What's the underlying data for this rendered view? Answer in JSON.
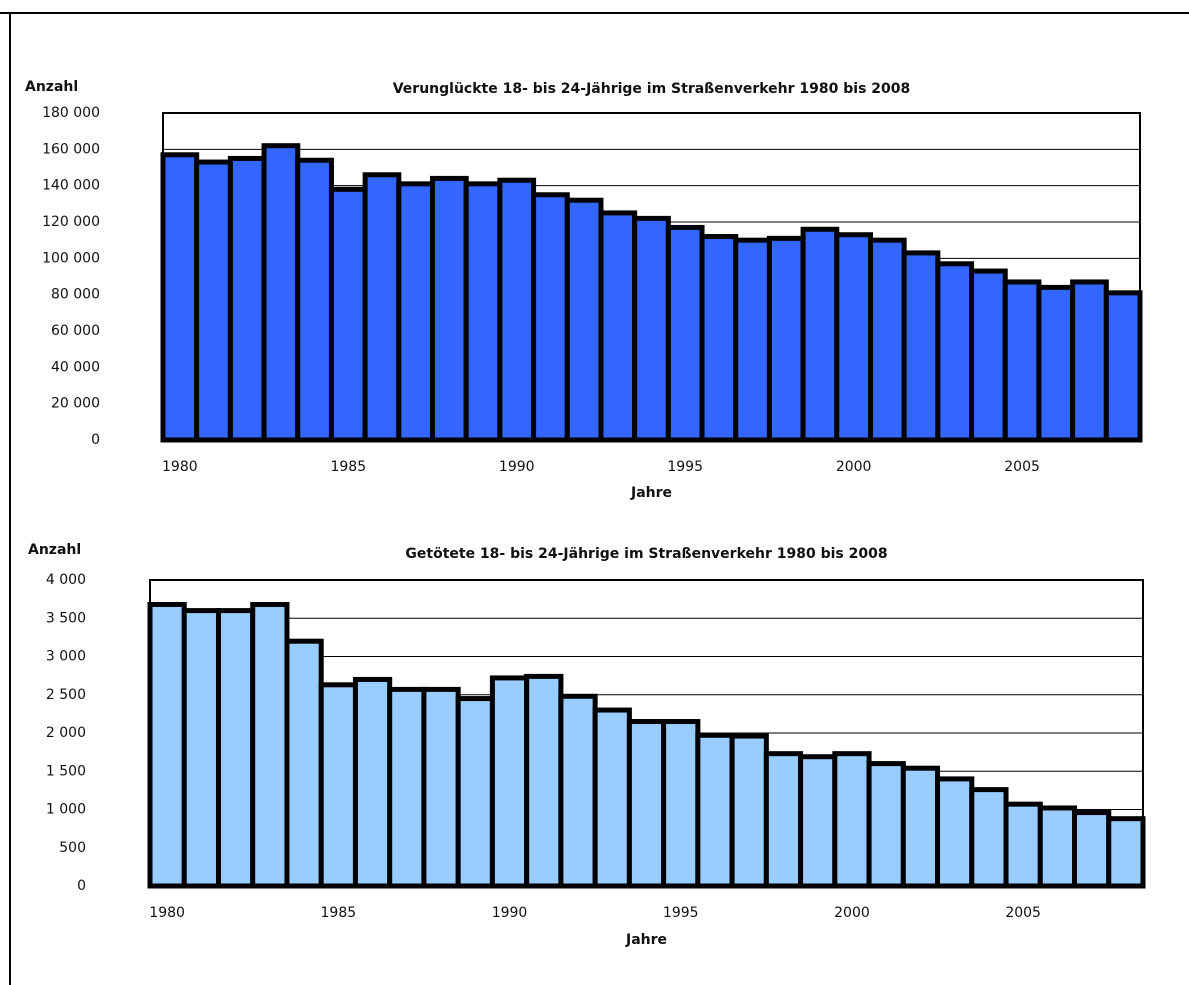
{
  "chart_data": [
    {
      "type": "bar",
      "title": "Verunglückte  18- bis 24-Jährige im Straßenverkehr 1980 bis 2008",
      "y_label": "Anzahl",
      "x_label": "Jahre",
      "categories": [
        1980,
        null,
        null,
        null,
        null,
        1985,
        null,
        null,
        null,
        null,
        1990,
        null,
        null,
        null,
        null,
        1995,
        null,
        null,
        null,
        null,
        2000,
        null,
        null,
        null,
        null,
        2005,
        null,
        null,
        null
      ],
      "values": [
        157000,
        153000,
        155000,
        162000,
        154000,
        138000,
        146000,
        141000,
        144000,
        141000,
        143000,
        135000,
        132000,
        125000,
        122000,
        117000,
        112000,
        110000,
        111000,
        116000,
        113000,
        110000,
        103000,
        97000,
        93000,
        87000,
        84000,
        87000,
        81000
      ],
      "color": "#3366ff",
      "ylim": [
        0,
        180000
      ],
      "yticks": [
        0,
        {
          "value": 20000,
          "label": "20 000"
        },
        {
          "value": 40000,
          "label": "40 000"
        },
        {
          "value": 60000,
          "label": "60 000"
        },
        {
          "value": 80000,
          "label": "80 000"
        },
        {
          "value": 100000,
          "label": "100 000"
        },
        {
          "value": 120000,
          "label": "120 000"
        },
        {
          "value": 140000,
          "label": "140 000"
        },
        {
          "value": 160000,
          "label": "160 000"
        },
        {
          "value": 180000,
          "label": "180 000"
        }
      ],
      "grid": true
    },
    {
      "type": "bar",
      "title": "Getötete 18- bis 24-Jährige im Straßenverkehr 1980 bis 2008",
      "y_label": "Anzahl",
      "x_label": "Jahre",
      "categories": [
        1980,
        null,
        null,
        null,
        null,
        1985,
        null,
        null,
        null,
        null,
        1990,
        null,
        null,
        null,
        null,
        1995,
        null,
        null,
        null,
        null,
        2000,
        null,
        null,
        null,
        null,
        2005,
        null,
        null,
        null
      ],
      "values": [
        3680,
        3600,
        3600,
        3680,
        3200,
        2630,
        2700,
        2570,
        2570,
        2450,
        2720,
        2740,
        2480,
        2300,
        2150,
        2150,
        1970,
        1960,
        1730,
        1690,
        1730,
        1600,
        1540,
        1400,
        1260,
        1070,
        1020,
        960,
        880
      ],
      "color": "#99ccff",
      "ylim": [
        0,
        4000
      ],
      "yticks": [
        0,
        500,
        {
          "value": 1000,
          "label": "1 000"
        },
        {
          "value": 1500,
          "label": "1 500"
        },
        {
          "value": 2000,
          "label": "2 000"
        },
        {
          "value": 2500,
          "label": "2 500"
        },
        {
          "value": 3000,
          "label": "3 000"
        },
        {
          "value": 3500,
          "label": "3 500"
        },
        {
          "value": 4000,
          "label": "4 000"
        }
      ],
      "grid": true
    }
  ]
}
